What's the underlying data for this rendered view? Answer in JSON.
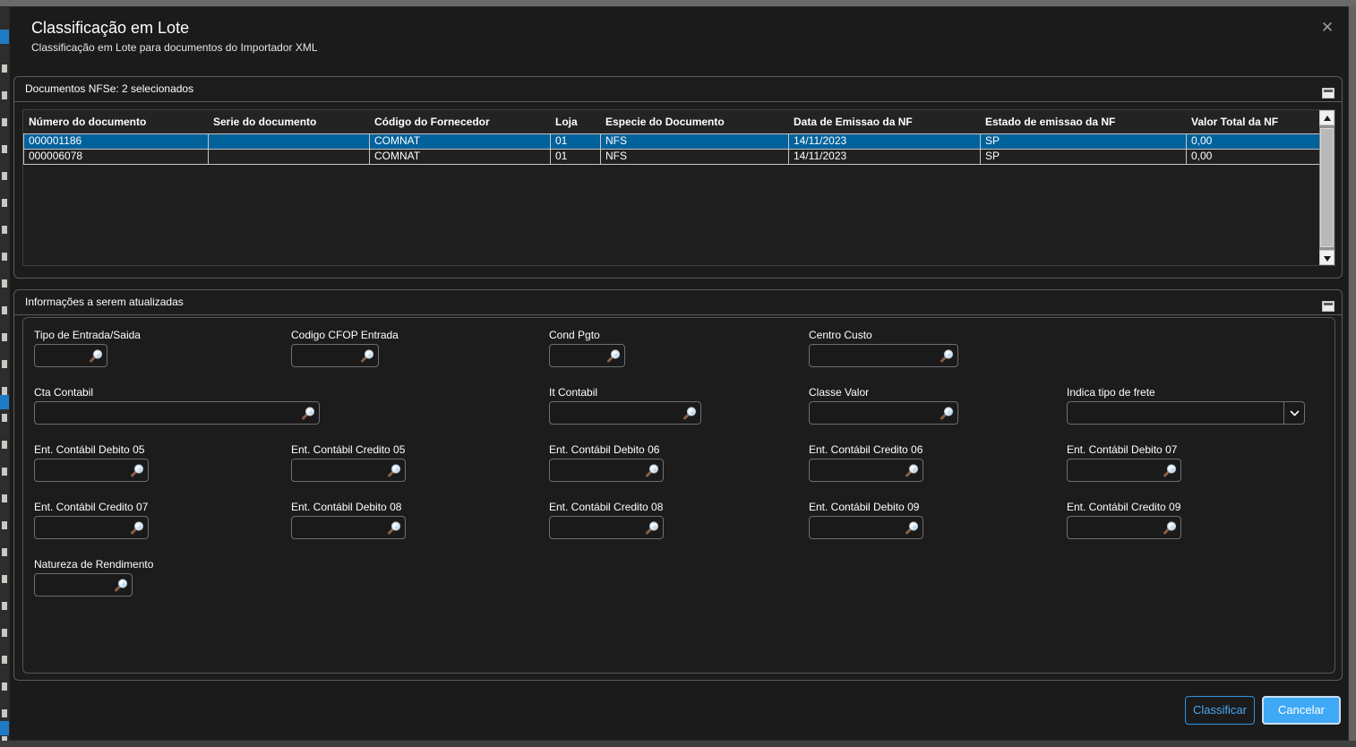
{
  "dialog": {
    "title": "Classificação em Lote",
    "subtitle": "Classificação em Lote para documentos do Importador XML"
  },
  "icons": {
    "close": "close-icon",
    "panel_collapse": "panel-collapse-icon",
    "lookup": "magnifier-icon",
    "select_arrow": "chevron-down-icon",
    "scroll_up": "scroll-up-arrow-icon",
    "scroll_down": "scroll-down-arrow-icon"
  },
  "colors": {
    "accent_blue": "#3fa9f5",
    "selected_row": "#00619b",
    "panel_border": "#5b5b5b",
    "grid_line": "#c6c6c6"
  },
  "documents_panel": {
    "title": "Documentos NFSe: 2 selecionados",
    "table": {
      "columns": [
        "Número do documento",
        "Serie do documento",
        "Código do Fornecedor",
        "Loja",
        "Especie do Documento",
        "Data de Emissao da NF",
        "Estado de emissao da NF",
        "Valor Total da NF"
      ],
      "rows": [
        {
          "selected": true,
          "cells": [
            "000001186",
            "",
            "COMNAT",
            "01",
            "NFS",
            "14/11/2023",
            "SP",
            "0,00"
          ]
        },
        {
          "selected": false,
          "cells": [
            "000006078",
            "",
            "COMNAT",
            "01",
            "NFS",
            "14/11/2023",
            "SP",
            "0,00"
          ]
        }
      ]
    }
  },
  "form_panel": {
    "title": "Informações a serem atualizadas",
    "fields": [
      {
        "label": "Tipo de Entrada/Saida",
        "value": "",
        "type": "lookup"
      },
      {
        "label": "Codigo CFOP Entrada",
        "value": "",
        "type": "lookup"
      },
      {
        "label": "Cond Pgto",
        "value": "",
        "type": "lookup"
      },
      {
        "label": "Centro Custo",
        "value": "",
        "type": "lookup"
      },
      {
        "label": "Cta Contabil",
        "value": "",
        "type": "lookup"
      },
      {
        "label": "It Contabil",
        "value": "",
        "type": "lookup"
      },
      {
        "label": "Classe Valor",
        "value": "",
        "type": "lookup"
      },
      {
        "label": "Indica tipo de frete",
        "value": "",
        "type": "select"
      },
      {
        "label": "Ent. Contábil Debito 05",
        "value": "",
        "type": "lookup"
      },
      {
        "label": "Ent. Contábil Credito 05",
        "value": "",
        "type": "lookup"
      },
      {
        "label": "Ent. Contábil Debito 06",
        "value": "",
        "type": "lookup"
      },
      {
        "label": "Ent. Contábil Credito 06",
        "value": "",
        "type": "lookup"
      },
      {
        "label": "Ent. Contábil Debito 07",
        "value": "",
        "type": "lookup"
      },
      {
        "label": "Ent. Contábil Credito 07",
        "value": "",
        "type": "lookup"
      },
      {
        "label": "Ent. Contábil Debito 08",
        "value": "",
        "type": "lookup"
      },
      {
        "label": "Ent. Contábil Credito 08",
        "value": "",
        "type": "lookup"
      },
      {
        "label": "Ent. Contábil Debito 09",
        "value": "",
        "type": "lookup"
      },
      {
        "label": "Ent. Contábil Credito 09",
        "value": "",
        "type": "lookup"
      },
      {
        "label": "Natureza de Rendimento",
        "value": "",
        "type": "lookup"
      }
    ]
  },
  "footer": {
    "classify_label": "Classificar",
    "cancel_label": "Cancelar"
  }
}
